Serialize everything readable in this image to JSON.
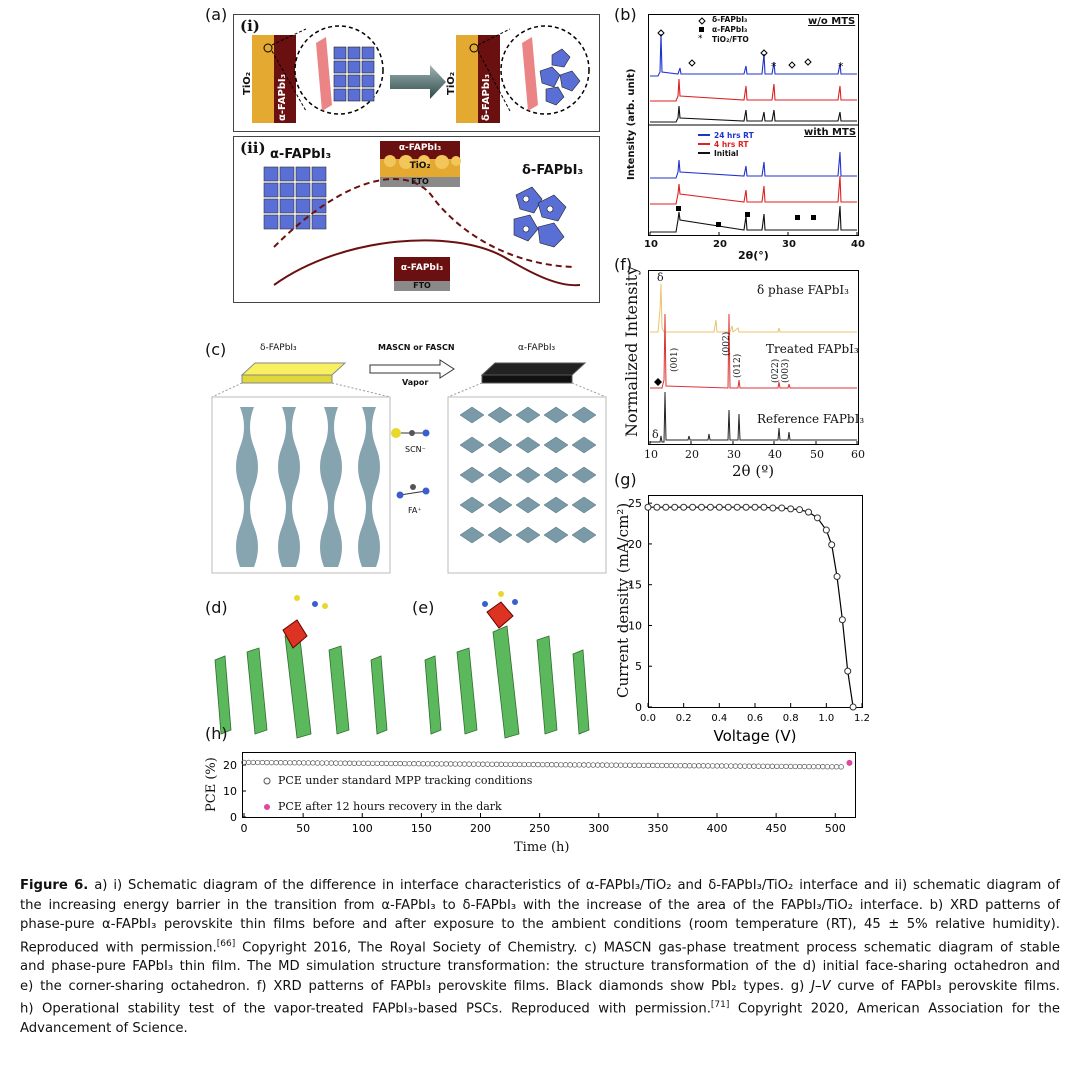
{
  "panels": {
    "a": {
      "label": "(a)",
      "i_label": "(i)",
      "ii_label": "(ii)",
      "layer_tio2": "TiO₂",
      "layer_alpha": "α-FAPbI₃",
      "layer_delta": "δ-FAPbI₃",
      "alpha_title": "α-FAPbI₃",
      "delta_title": "δ-FAPbI₃",
      "stack_top": {
        "film": "α-FAPbI₃",
        "tio2": "TiO₂",
        "fto": "FTO"
      },
      "stack_bottom": {
        "film": "α-FAPbI₃",
        "fto": "FTO"
      }
    },
    "b": {
      "label": "(b)",
      "top_title": "w/o MTS",
      "bottom_title": "with MTS",
      "legend_top": [
        "δ-FAPbI₃",
        "α-FAPbI₃",
        "TiO₂/FTO"
      ],
      "legend_bottom": [
        "24 hrs RT",
        "4 hrs RT",
        "Initial"
      ],
      "ylabel": "Intensity (arb. unit)",
      "xlabel": "2θ(°)",
      "xticks": [
        "10",
        "20",
        "30",
        "40"
      ]
    },
    "c": {
      "label": "(c)",
      "left_title": "δ-FAPbI₃",
      "right_title": "α-FAPbI₃",
      "arrow_top": "MASCN or FASCN",
      "arrow_bottom": "Vapor",
      "ion1": "SCN⁻",
      "ion2": "FA⁺"
    },
    "d": {
      "label": "(d)"
    },
    "e": {
      "label": "(e)"
    },
    "f": {
      "label": "(f)",
      "ylabel": "Normalized Intensity",
      "xlabel": "2θ (º)",
      "xticks": [
        "10",
        "20",
        "30",
        "40",
        "50",
        "60"
      ],
      "series_labels": [
        "δ phase FAPbI₃",
        "Treated FAPbI₃",
        "Reference FAPbI₃"
      ],
      "peak_labels": [
        "(001)",
        "(002)",
        "(012)",
        "(022)",
        "(003)"
      ],
      "delta_mark": "δ"
    },
    "g": {
      "label": "(g)",
      "xlabel": "Voltage (V)",
      "ylabel": "Current density (mA/cm²)",
      "xticks": [
        "0.0",
        "0.2",
        "0.4",
        "0.6",
        "0.8",
        "1.0",
        "1.2"
      ],
      "yticks": [
        "0",
        "5",
        "10",
        "15",
        "20",
        "25"
      ]
    },
    "h": {
      "label": "(h)",
      "xlabel": "Time (h)",
      "ylabel": "PCE (%)",
      "xticks": [
        "0",
        "50",
        "100",
        "150",
        "200",
        "250",
        "300",
        "350",
        "400",
        "450",
        "500"
      ],
      "yticks": [
        "0",
        "10",
        "20"
      ],
      "legend": [
        "PCE under standard MPP tracking conditions",
        "PCE after 12 hours recovery in the dark"
      ]
    }
  },
  "chart_data": [
    {
      "type": "line",
      "panel": "g",
      "xlabel": "Voltage (V)",
      "ylabel": "Current density (mA/cm²)",
      "xlim": [
        0,
        1.2
      ],
      "ylim": [
        0,
        26
      ],
      "x": [
        0.0,
        0.05,
        0.1,
        0.15,
        0.2,
        0.25,
        0.3,
        0.35,
        0.4,
        0.45,
        0.5,
        0.55,
        0.6,
        0.65,
        0.7,
        0.75,
        0.8,
        0.85,
        0.9,
        0.95,
        1.0,
        1.03,
        1.06,
        1.09,
        1.12,
        1.15
      ],
      "y": [
        24.5,
        24.5,
        24.5,
        24.5,
        24.5,
        24.5,
        24.5,
        24.5,
        24.5,
        24.5,
        24.5,
        24.5,
        24.5,
        24.5,
        24.4,
        24.4,
        24.3,
        24.2,
        23.9,
        23.2,
        21.7,
        19.9,
        16.0,
        10.7,
        4.4,
        0.0
      ]
    },
    {
      "type": "scatter",
      "panel": "h",
      "xlabel": "Time (h)",
      "ylabel": "PCE (%)",
      "xlim": [
        0,
        515
      ],
      "ylim": [
        0,
        25
      ],
      "series": [
        {
          "name": "PCE under standard MPP tracking conditions",
          "x_start": 0,
          "x_end": 505,
          "y_start": 21.0,
          "y_end": 19.3
        },
        {
          "name": "PCE after 12 hours recovery in the dark",
          "x": [
            512
          ],
          "y": [
            20.8
          ]
        }
      ]
    }
  ],
  "caption": {
    "lines": [
      [
        {
          "b": "Figure 6."
        },
        {
          "t": " a) i) Schematic diagram of the difference in interface characteristics of α-FAPbI₃/TiO₂ and δ-FAPbI₃/TiO₂ interface and ii) schematic diagram of"
        }
      ],
      [
        {
          "t": "the increasing energy barrier in the transition from α-FAPbI₃ to δ-FAPbI₃ with the increase of the area of the FAPbI₃/TiO₂ interface. b) XRD patterns of"
        }
      ],
      [
        {
          "t": "phase-pure α-FAPbI₃ perovskite thin films before and after exposure to the ambient conditions (room temperature (RT), 45 ± 5% relative humidity)."
        }
      ],
      [
        {
          "t": "Reproduced with permission."
        },
        {
          "sup": "[66]"
        },
        {
          "t": " Copyright 2016, The Royal Society of Chemistry. c) MASCN gas-phase treatment process schematic diagram of stable"
        }
      ],
      [
        {
          "t": "and phase-pure FAPbI₃ thin film. The MD simulation structure transformation: the structure transformation of the d) initial face-sharing octahedron and"
        }
      ],
      [
        {
          "t": "e) the corner-sharing octahedron. f) XRD patterns of FAPbI₃ perovskite films. Black diamonds show PbI₂ types. g) "
        },
        {
          "i": "J–V"
        },
        {
          "t": " curve of FAPbI₃ perovskite films."
        }
      ],
      [
        {
          "t": "h) Operational stability test of the vapor-treated FAPbI₃-based PSCs. Reproduced with permission."
        },
        {
          "sup": "[71]"
        },
        {
          "t": " Copyright 2020, American Association for the"
        }
      ],
      [
        {
          "t": "Advancement of Science."
        }
      ]
    ]
  }
}
